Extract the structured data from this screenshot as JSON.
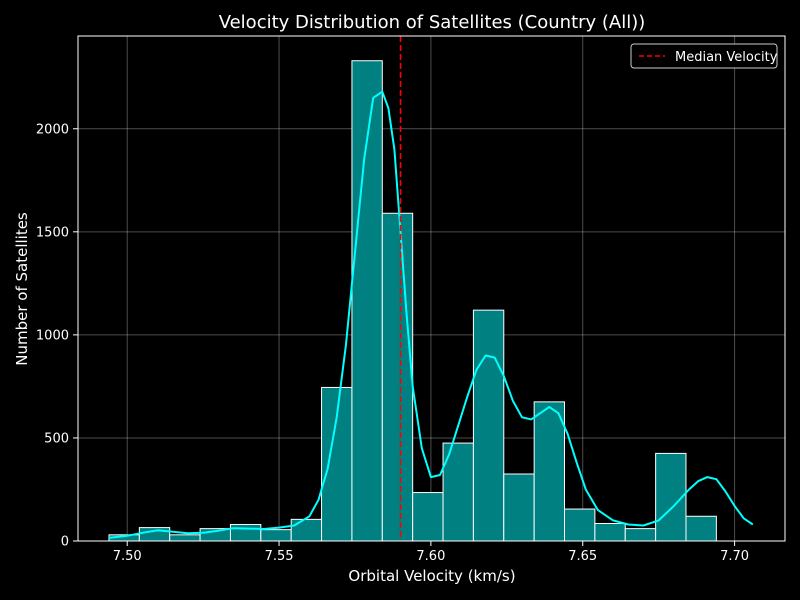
{
  "chart_data": {
    "type": "bar",
    "title": "Velocity Distribution of Satellites (Country (All))",
    "xlabel": "Orbital Velocity (km/s)",
    "ylabel": "Number of Satellites",
    "xlim": [
      7.4838,
      7.7166
    ],
    "ylim": [
      0,
      2450
    ],
    "x_ticks": [
      7.5,
      7.55,
      7.6,
      7.65,
      7.7
    ],
    "x_tick_labels": [
      "7.50",
      "7.55",
      "7.60",
      "7.65",
      "7.70"
    ],
    "y_ticks": [
      0,
      500,
      1000,
      1500,
      2000
    ],
    "y_tick_labels": [
      "0",
      "500",
      "1000",
      "1500",
      "2000"
    ],
    "grid": true,
    "legend_position": "top-right",
    "bins": {
      "edges": [
        7.494,
        7.504,
        7.514,
        7.524,
        7.534,
        7.544,
        7.554,
        7.564,
        7.574,
        7.584,
        7.594,
        7.604,
        7.614,
        7.624,
        7.634,
        7.644,
        7.654,
        7.664,
        7.674,
        7.684,
        7.694,
        7.704
      ],
      "counts": [
        30,
        65,
        30,
        60,
        80,
        55,
        105,
        745,
        2330,
        1590,
        235,
        475,
        1120,
        325,
        675,
        155,
        85,
        60,
        425,
        120,
        0
      ]
    },
    "kde": {
      "x": [
        7.494,
        7.5,
        7.505,
        7.51,
        7.515,
        7.52,
        7.525,
        7.53,
        7.535,
        7.54,
        7.545,
        7.55,
        7.555,
        7.56,
        7.563,
        7.566,
        7.569,
        7.572,
        7.575,
        7.578,
        7.581,
        7.584,
        7.586,
        7.588,
        7.59,
        7.592,
        7.594,
        7.597,
        7.6,
        7.603,
        7.606,
        7.609,
        7.612,
        7.615,
        7.618,
        7.621,
        7.624,
        7.627,
        7.63,
        7.633,
        7.636,
        7.639,
        7.642,
        7.645,
        7.648,
        7.651,
        7.655,
        7.66,
        7.665,
        7.67,
        7.675,
        7.68,
        7.685,
        7.688,
        7.691,
        7.694,
        7.697,
        7.7,
        7.703,
        7.706
      ],
      "y": [
        15,
        25,
        40,
        52,
        45,
        38,
        40,
        50,
        62,
        60,
        58,
        65,
        75,
        120,
        200,
        350,
        600,
        950,
        1400,
        1850,
        2150,
        2180,
        2100,
        1900,
        1500,
        1100,
        750,
        450,
        310,
        320,
        420,
        560,
        700,
        830,
        900,
        890,
        800,
        680,
        600,
        590,
        620,
        650,
        620,
        520,
        380,
        250,
        150,
        100,
        80,
        75,
        100,
        170,
        250,
        290,
        310,
        300,
        240,
        170,
        110,
        80
      ]
    },
    "median": 7.59,
    "series": [
      {
        "name": "Median Velocity",
        "type": "vline",
        "color": "#ff0000"
      }
    ],
    "colors": {
      "bar_fill": "#008080",
      "bar_edge": "#ffffff",
      "kde_line": "#00ffff",
      "median_line": "#ff0000",
      "grid": "#ffffff",
      "background": "#000000",
      "text": "#ffffff"
    }
  }
}
